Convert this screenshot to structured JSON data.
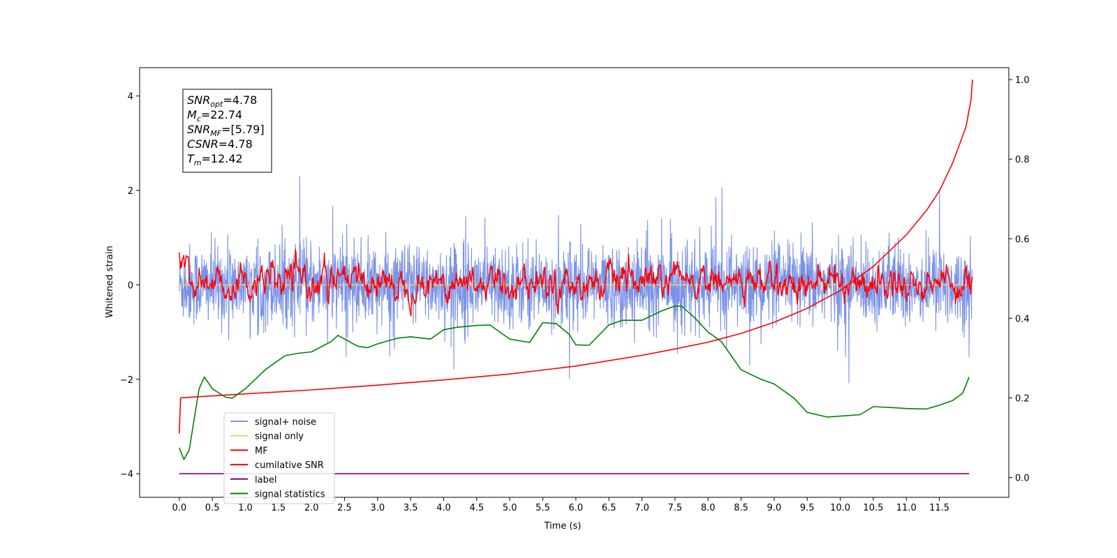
{
  "chart_data": {
    "type": "line",
    "xlabel": "Time (s)",
    "ylabel": "Whitened strain",
    "xlim": [
      -0.6,
      12.55
    ],
    "ylim": [
      -4.5,
      4.6
    ],
    "y2lim": [
      -0.05,
      1.03
    ],
    "x_ticks": [
      "0.0",
      "0.5",
      "1.0",
      "1.5",
      "2.0",
      "2.5",
      "3.0",
      "3.5",
      "4.0",
      "4.5",
      "5.0",
      "5.5",
      "6.0",
      "6.5",
      "7.0",
      "7.5",
      "8.0",
      "8.5",
      "9.0",
      "9.5",
      "10.0",
      "10.5",
      "11.0",
      "11.5"
    ],
    "y_ticks": [
      "4",
      "2",
      "0",
      "−2",
      "−4"
    ],
    "y2_ticks": [
      "1.0",
      "0.8",
      "0.6",
      "0.4",
      "0.2",
      "0.0"
    ],
    "grid": false,
    "legend_position": "lower-left",
    "info_box": [
      {
        "main": "SNR",
        "sub": "opt",
        "rest": "=4.78"
      },
      {
        "main": "M",
        "sub": "c",
        "rest": "=22.74"
      },
      {
        "main": "SNR",
        "sub": "MF",
        "rest": "=[5.79]"
      },
      {
        "main": "CSNR",
        "sub": "",
        "rest": "=4.78"
      },
      {
        "main": "T",
        "sub": "m",
        "rest": "=12.42"
      }
    ],
    "series": [
      {
        "name": "signal+ noise",
        "color": "#7b93e6",
        "axis": "left",
        "style": "noise",
        "x_range": [
          0.0,
          12.0
        ],
        "std": 0.42
      },
      {
        "name": "signal only",
        "color": "#f5c97a",
        "axis": "left",
        "x": [
          0.0,
          12.0
        ],
        "y": [
          0.0,
          0.0
        ]
      },
      {
        "name": "MF",
        "color": "#ff0000",
        "axis": "left",
        "style": "noise",
        "x_range": [
          0.0,
          12.0
        ],
        "std": 0.15
      },
      {
        "name": "cumilative SNR",
        "color": "#ff0000",
        "axis": "right",
        "x": [
          0.0,
          0.02,
          0.5,
          1.0,
          2.0,
          3.0,
          4.0,
          5.0,
          6.0,
          7.0,
          7.5,
          8.0,
          8.5,
          9.0,
          9.5,
          10.0,
          10.5,
          11.0,
          11.3,
          11.5,
          11.7,
          11.9,
          11.98,
          12.0
        ],
        "y": [
          0.11,
          0.2,
          0.205,
          0.21,
          0.22,
          0.232,
          0.245,
          0.26,
          0.28,
          0.307,
          0.323,
          0.34,
          0.362,
          0.39,
          0.425,
          0.47,
          0.53,
          0.61,
          0.67,
          0.72,
          0.79,
          0.88,
          0.95,
          1.0
        ]
      },
      {
        "name": "label",
        "color": "#800080",
        "axis": "left",
        "x": [
          0.0,
          11.95
        ],
        "y": [
          -4.0,
          -4.0
        ]
      },
      {
        "name": "signal statistics",
        "color": "#008000",
        "axis": "left",
        "x": [
          0.0,
          0.07,
          0.15,
          0.3,
          0.38,
          0.5,
          0.7,
          0.8,
          1.0,
          1.3,
          1.6,
          1.8,
          2.0,
          2.3,
          2.4,
          2.7,
          2.85,
          3.0,
          3.3,
          3.5,
          3.8,
          4.0,
          4.2,
          4.5,
          4.7,
          4.9,
          5.0,
          5.3,
          5.5,
          5.7,
          5.9,
          6.0,
          6.2,
          6.5,
          6.7,
          7.0,
          7.3,
          7.5,
          7.6,
          7.8,
          8.0,
          8.2,
          8.5,
          8.8,
          9.0,
          9.3,
          9.5,
          9.8,
          10.0,
          10.3,
          10.5,
          10.8,
          11.0,
          11.3,
          11.5,
          11.7,
          11.85,
          11.95
        ],
        "y": [
          -3.45,
          -3.7,
          -3.5,
          -2.2,
          -1.95,
          -2.2,
          -2.38,
          -2.4,
          -2.2,
          -1.8,
          -1.5,
          -1.45,
          -1.42,
          -1.2,
          -1.07,
          -1.3,
          -1.33,
          -1.25,
          -1.13,
          -1.1,
          -1.15,
          -0.95,
          -0.9,
          -0.86,
          -0.85,
          -1.05,
          -1.15,
          -1.22,
          -0.8,
          -0.82,
          -1.05,
          -1.27,
          -1.28,
          -0.85,
          -0.75,
          -0.75,
          -0.55,
          -0.45,
          -0.45,
          -0.7,
          -1.0,
          -1.2,
          -1.8,
          -2.0,
          -2.1,
          -2.4,
          -2.7,
          -2.8,
          -2.78,
          -2.75,
          -2.58,
          -2.6,
          -2.62,
          -2.63,
          -2.55,
          -2.45,
          -2.3,
          -1.95
        ]
      }
    ]
  }
}
